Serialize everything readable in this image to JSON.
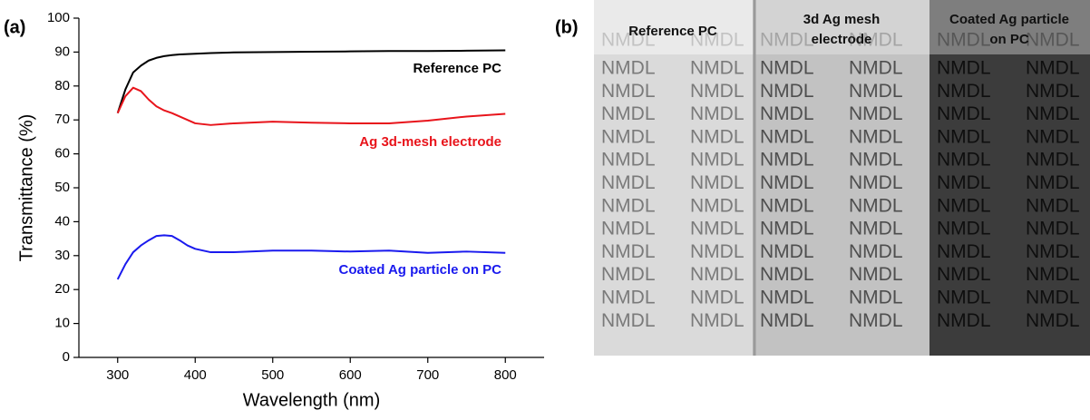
{
  "chart_data": {
    "type": "line",
    "panel_label": "(a)",
    "x_label": "Wavelength (nm)",
    "y_label": "Transmittance (%)",
    "x": [
      300,
      310,
      320,
      330,
      340,
      350,
      360,
      370,
      380,
      390,
      400,
      420,
      450,
      500,
      550,
      600,
      650,
      700,
      750,
      800
    ],
    "series": [
      {
        "name": "Reference PC",
        "color": "#000000",
        "values": [
          72,
          79,
          84,
          86,
          87.5,
          88.3,
          88.8,
          89.1,
          89.3,
          89.4,
          89.5,
          89.7,
          89.9,
          90,
          90.1,
          90.2,
          90.3,
          90.3,
          90.4,
          90.5
        ]
      },
      {
        "name": "Ag 3d-mesh electrode",
        "color": "#e8141b",
        "values": [
          72,
          77,
          79.5,
          78.5,
          76,
          74,
          72.8,
          72,
          71,
          70,
          69,
          68.5,
          69,
          69.5,
          69.2,
          69,
          69,
          69.8,
          71,
          71.8
        ]
      },
      {
        "name": "Coated Ag particle on PC",
        "color": "#1a1aee",
        "values": [
          23,
          27.5,
          31,
          33,
          34.5,
          35.8,
          36,
          35.8,
          34.5,
          33,
          32,
          31,
          31,
          31.5,
          31.5,
          31.2,
          31.5,
          30.8,
          31.2,
          30.8
        ]
      }
    ],
    "xlim": [
      250,
      850
    ],
    "xticks": [
      300,
      400,
      500,
      600,
      700,
      800
    ],
    "ylim": [
      0,
      100
    ],
    "yticks": [
      0,
      10,
      20,
      30,
      40,
      50,
      60,
      70,
      80,
      90,
      100
    ]
  },
  "photo": {
    "panel_label": "(b)",
    "tile_text": "NMDL",
    "columns": [
      "Reference PC",
      "3d Ag mesh electrode",
      "Coated Ag particle on PC"
    ]
  }
}
